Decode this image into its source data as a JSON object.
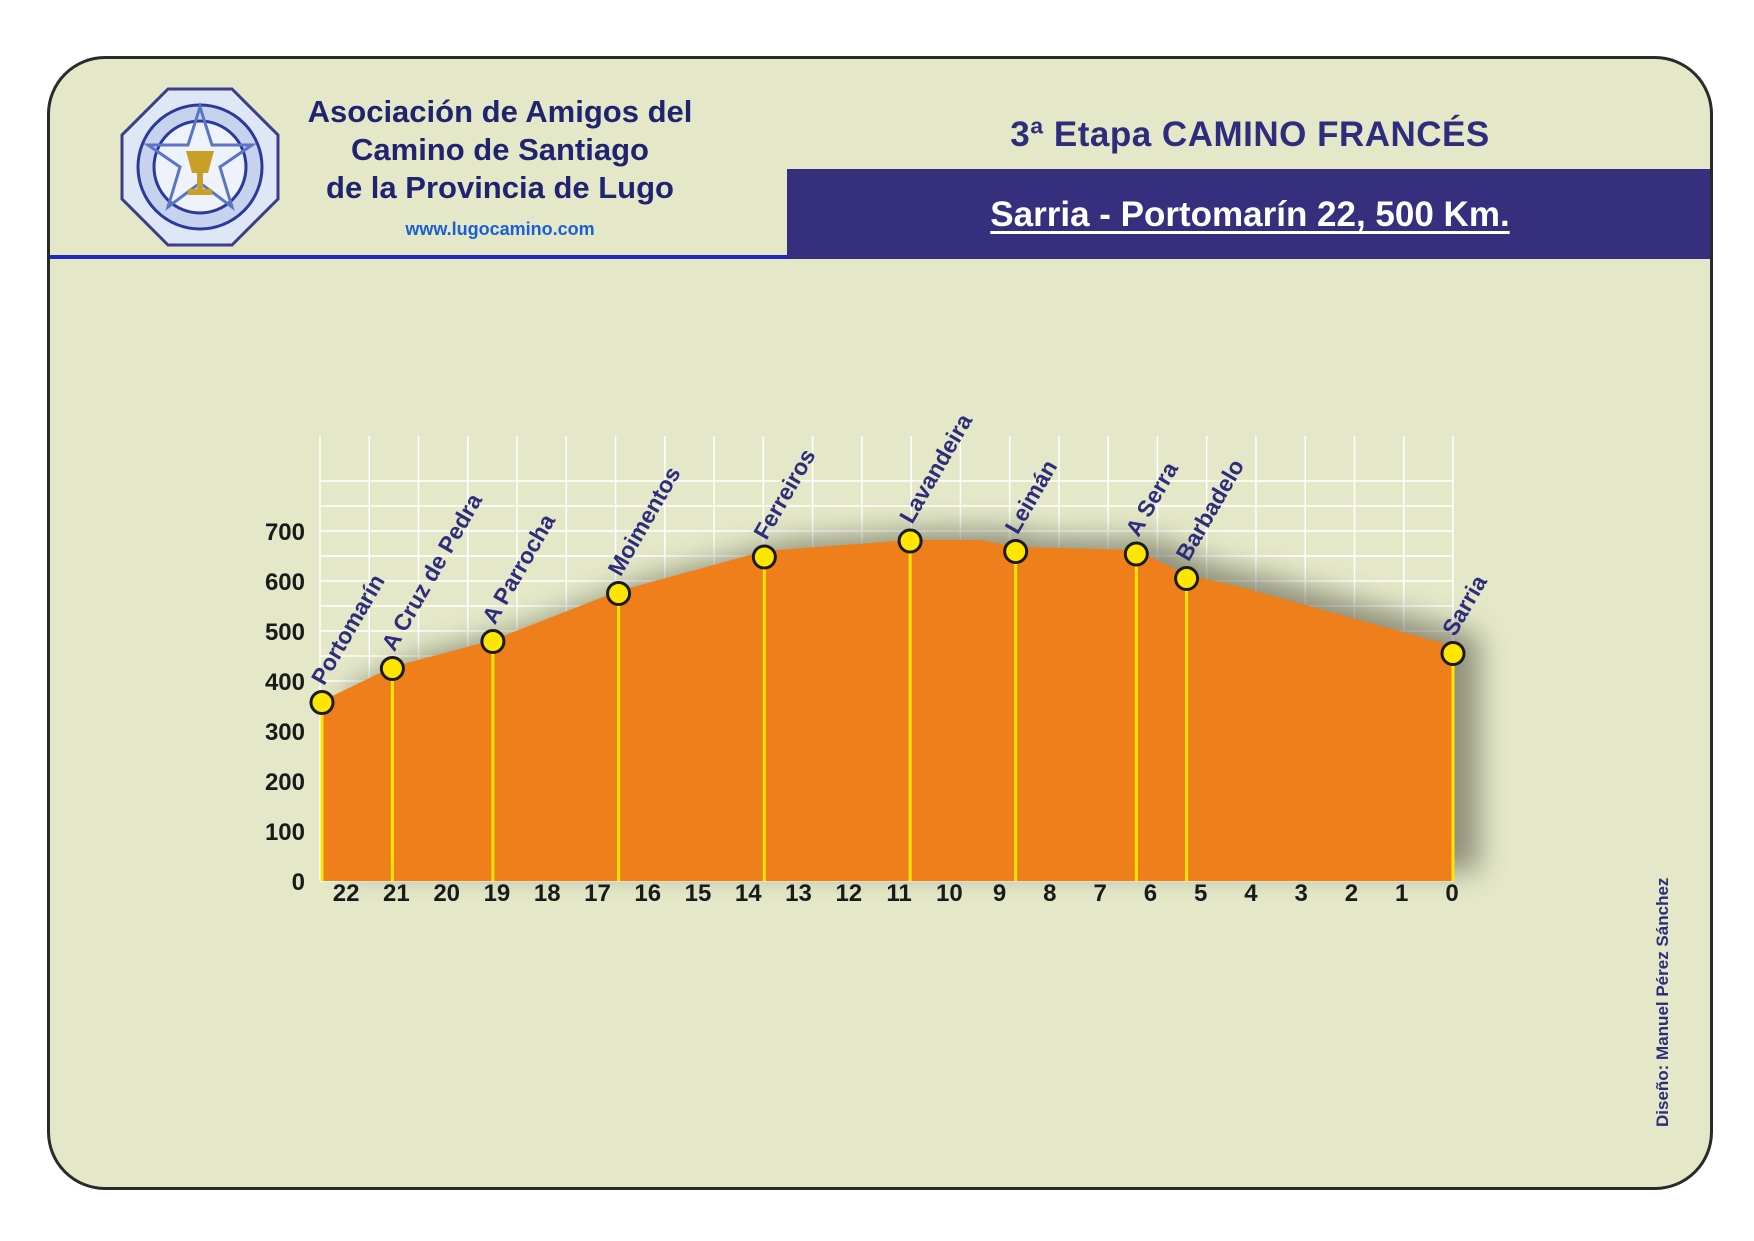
{
  "header": {
    "org_lines": [
      "Asociación de Amigos del",
      "Camino de Santiago",
      "de la Provincia de Lugo"
    ],
    "website": "www.lugocamino.com",
    "stage_title": "3ª Etapa CAMINO FRANCÉS",
    "route": "Sarria - Portomarín  22, 500 Km."
  },
  "credit": "Diseño: Manuel Pérez Sánchez",
  "colors": {
    "card_background": "#e4e8c8",
    "heading_text": "#2e2c7c",
    "banner": "#352f7e",
    "rule": "#1e28c8",
    "profile_fill": "#ef7f1a",
    "marker": "#ffe600",
    "grid": "#ffffff"
  },
  "chart_data": {
    "type": "area",
    "title": "",
    "xlabel": "",
    "ylabel": "",
    "ylim": [
      0,
      800
    ],
    "xlim": [
      22.5,
      0
    ],
    "x_axis_reversed": true,
    "grid": true,
    "y_ticks": [
      0,
      100,
      200,
      300,
      400,
      500,
      600,
      700
    ],
    "x_ticks": [
      22,
      21,
      20,
      19,
      18,
      17,
      16,
      15,
      14,
      13,
      12,
      11,
      10,
      9,
      8,
      7,
      6,
      5,
      4,
      3,
      2,
      1,
      0
    ],
    "profile": {
      "x": [
        22.5,
        21.1,
        19.1,
        16.6,
        13.7,
        10.8,
        9.4,
        8.7,
        6.3,
        5.3,
        4.3,
        0
      ],
      "y": [
        360,
        428,
        482,
        580,
        660,
        682,
        682,
        668,
        662,
        612,
        590,
        470
      ]
    },
    "places": [
      {
        "name": "Portomarín",
        "x": 22.5,
        "y": 357
      },
      {
        "name": "A Cruz de Pedra",
        "x": 21.1,
        "y": 425
      },
      {
        "name": "A Parrocha",
        "x": 19.1,
        "y": 479
      },
      {
        "name": "Moimentos",
        "x": 16.6,
        "y": 575
      },
      {
        "name": "Ferreiros",
        "x": 13.7,
        "y": 648
      },
      {
        "name": "Lavandeira",
        "x": 10.8,
        "y": 680
      },
      {
        "name": "Leimán",
        "x": 8.7,
        "y": 659
      },
      {
        "name": "A Serra",
        "x": 6.3,
        "y": 654
      },
      {
        "name": "Barbadelo",
        "x": 5.3,
        "y": 605
      },
      {
        "name": "Sarria",
        "x": 0,
        "y": 455
      }
    ]
  }
}
